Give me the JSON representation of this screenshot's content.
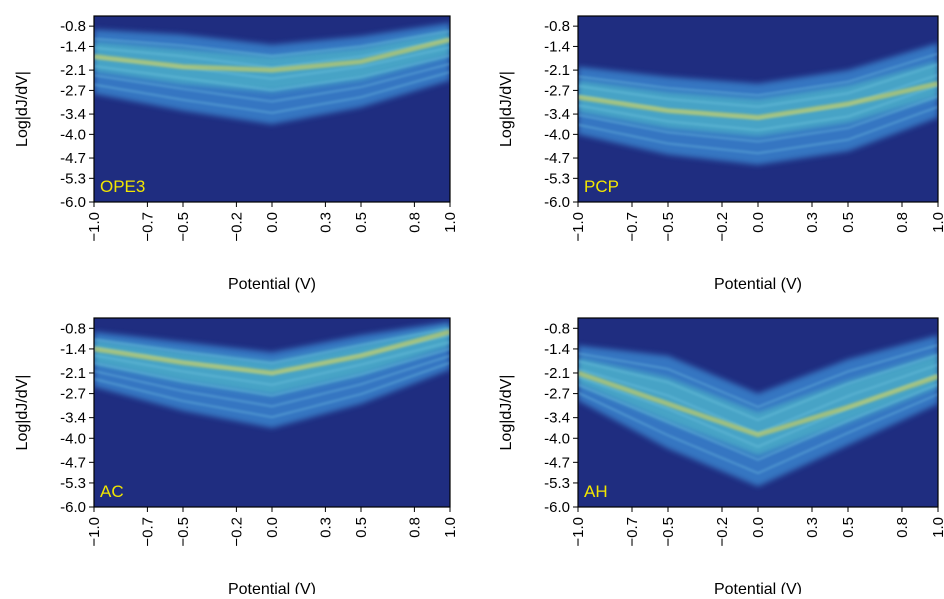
{
  "colors": {
    "background": "#1f2d80",
    "band": "#3d8fd8",
    "peak": "#e6d84a",
    "panel_label": "#f2e600"
  },
  "chart_data": [
    {
      "type": "heatmap",
      "panel_label": "OPE3",
      "xlabel": "Potential (V)",
      "ylabel": "Log|dJ/dV|",
      "xlim": [
        -1.0,
        1.0
      ],
      "ylim": [
        -6.0,
        -0.5
      ],
      "x_ticks": [
        "−1.0",
        "−0.7",
        "−0.5",
        "−0.2",
        "0.0",
        "0.3",
        "0.5",
        "0.8",
        "1.0"
      ],
      "y_ticks": [
        "-0.8",
        "-1.4",
        "-2.1",
        "-2.7",
        "-3.4",
        "-4.0",
        "-4.7",
        "-5.3",
        "-6.0"
      ],
      "band_center": {
        "x": [
          -1.0,
          -0.5,
          0.0,
          0.5,
          1.0
        ],
        "y": [
          -1.7,
          -2.0,
          -2.1,
          -1.85,
          -1.2
        ]
      },
      "band_upper": {
        "x": [
          -1.0,
          -0.5,
          0.0,
          0.5,
          1.0
        ],
        "y": [
          -0.9,
          -1.05,
          -1.35,
          -1.1,
          -0.7
        ]
      },
      "band_lower": {
        "x": [
          -1.0,
          -0.5,
          0.0,
          0.5,
          1.0
        ],
        "y": [
          -2.8,
          -3.3,
          -3.7,
          -3.2,
          -2.4
        ]
      }
    },
    {
      "type": "heatmap",
      "panel_label": "PCP",
      "xlabel": "Potential (V)",
      "ylabel": "Log|dJ/dV|",
      "xlim": [
        -1.0,
        1.0
      ],
      "ylim": [
        -6.0,
        -0.5
      ],
      "x_ticks": [
        "−1.0",
        "−0.7",
        "−0.5",
        "−0.2",
        "0.0",
        "0.3",
        "0.5",
        "0.8",
        "1.0"
      ],
      "y_ticks": [
        "-0.8",
        "-1.4",
        "-2.1",
        "-2.7",
        "-3.4",
        "-4.0",
        "-4.7",
        "-5.3",
        "-6.0"
      ],
      "band_center": {
        "x": [
          -1.0,
          -0.5,
          0.0,
          0.5,
          1.0
        ],
        "y": [
          -2.9,
          -3.3,
          -3.5,
          -3.1,
          -2.5
        ]
      },
      "band_upper": {
        "x": [
          -1.0,
          -0.5,
          0.0,
          0.5,
          1.0
        ],
        "y": [
          -2.0,
          -2.3,
          -2.5,
          -2.1,
          -1.3
        ]
      },
      "band_lower": {
        "x": [
          -1.0,
          -0.5,
          0.0,
          0.5,
          1.0
        ],
        "y": [
          -4.0,
          -4.6,
          -4.9,
          -4.5,
          -3.5
        ]
      }
    },
    {
      "type": "heatmap",
      "panel_label": "AC",
      "xlabel": "Potential (V)",
      "ylabel": "Log|dJ/dV|",
      "xlim": [
        -1.0,
        1.0
      ],
      "ylim": [
        -6.0,
        -0.5
      ],
      "x_ticks": [
        "−1.0",
        "−0.7",
        "−0.5",
        "−0.2",
        "0.0",
        "0.3",
        "0.5",
        "0.8",
        "1.0"
      ],
      "y_ticks": [
        "-0.8",
        "-1.4",
        "-2.1",
        "-2.7",
        "-3.4",
        "-4.0",
        "-4.7",
        "-5.3",
        "-6.0"
      ],
      "band_center": {
        "x": [
          -1.0,
          -0.5,
          0.0,
          0.5,
          1.0
        ],
        "y": [
          -1.4,
          -1.8,
          -2.1,
          -1.6,
          -0.9
        ]
      },
      "band_upper": {
        "x": [
          -1.0,
          -0.5,
          0.0,
          0.5,
          1.0
        ],
        "y": [
          -0.9,
          -1.2,
          -1.5,
          -1.0,
          -0.6
        ]
      },
      "band_lower": {
        "x": [
          -1.0,
          -0.5,
          0.0,
          0.5,
          1.0
        ],
        "y": [
          -2.5,
          -3.2,
          -3.7,
          -3.0,
          -2.0
        ]
      }
    },
    {
      "type": "heatmap",
      "panel_label": "AH",
      "xlabel": "Potential (V)",
      "ylabel": "Log|dJ/dV|",
      "xlim": [
        -1.0,
        1.0
      ],
      "ylim": [
        -6.0,
        -0.5
      ],
      "x_ticks": [
        "−1.0",
        "−0.7",
        "−0.5",
        "−0.2",
        "0.0",
        "0.3",
        "0.5",
        "0.8",
        "1.0"
      ],
      "y_ticks": [
        "-0.8",
        "-1.4",
        "-2.1",
        "-2.7",
        "-3.4",
        "-4.0",
        "-4.7",
        "-5.3",
        "-6.0"
      ],
      "band_center": {
        "x": [
          -1.0,
          -0.5,
          0.0,
          0.5,
          1.0
        ],
        "y": [
          -2.1,
          -3.0,
          -3.9,
          -3.1,
          -2.2
        ]
      },
      "band_upper": {
        "x": [
          -1.0,
          -0.5,
          0.0,
          0.5,
          1.0
        ],
        "y": [
          -1.3,
          -1.6,
          -2.7,
          -1.7,
          -1.0
        ]
      },
      "band_lower": {
        "x": [
          -1.0,
          -0.5,
          0.0,
          0.5,
          1.0
        ],
        "y": [
          -2.9,
          -4.3,
          -5.4,
          -4.2,
          -3.0
        ]
      }
    }
  ]
}
